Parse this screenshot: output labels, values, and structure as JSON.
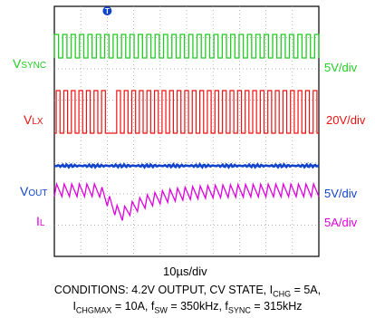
{
  "chart_data": {
    "type": "line",
    "title": "",
    "xlabel": "10µs/div",
    "time_per_div_us": 10,
    "divisions": {
      "x": 10,
      "y": 8
    },
    "trigger_marker": "T",
    "series": [
      {
        "name": "VSYNC",
        "label_main": "V",
        "label_sub": "SYNC",
        "scale": "5V/div",
        "color": "#22cc22",
        "waveform": "square",
        "frequency_khz": 315,
        "low_v": 0,
        "high_v": 5
      },
      {
        "name": "VLX",
        "label_main": "V",
        "label_sub": "LX",
        "scale": "20V/div",
        "color": "#ee1111",
        "waveform": "pulse",
        "frequency_khz": 350,
        "low_v": 0,
        "high_v": 20,
        "note_skipped_pulse_near_us": 20
      },
      {
        "name": "VOUT",
        "label_main": "V",
        "label_sub": "OUT",
        "scale": "5V/div",
        "color": "#1144cc",
        "waveform": "dc",
        "level_v": 4.2
      },
      {
        "name": "IL",
        "label_main": "I",
        "label_sub": "L",
        "scale": "5A/div",
        "color": "#dd00dd",
        "waveform": "sawtooth",
        "ripple_a": 3,
        "dip_near_us": 25
      }
    ]
  },
  "caption": {
    "line1_prefix": "CONDITIONS: 4.2V OUTPUT, CV STATE, I",
    "line1_sub": "CHG",
    "line1_suffix": " = 5A,",
    "line2_i": "I",
    "line2_sub1": "CHGMAX",
    "line2_mid": " = 10A, f",
    "line2_sub2": "SW",
    "line2_mid2": " = 350kHz, f",
    "line2_sub3": "SYNC",
    "line2_end": " = 315kHz"
  }
}
